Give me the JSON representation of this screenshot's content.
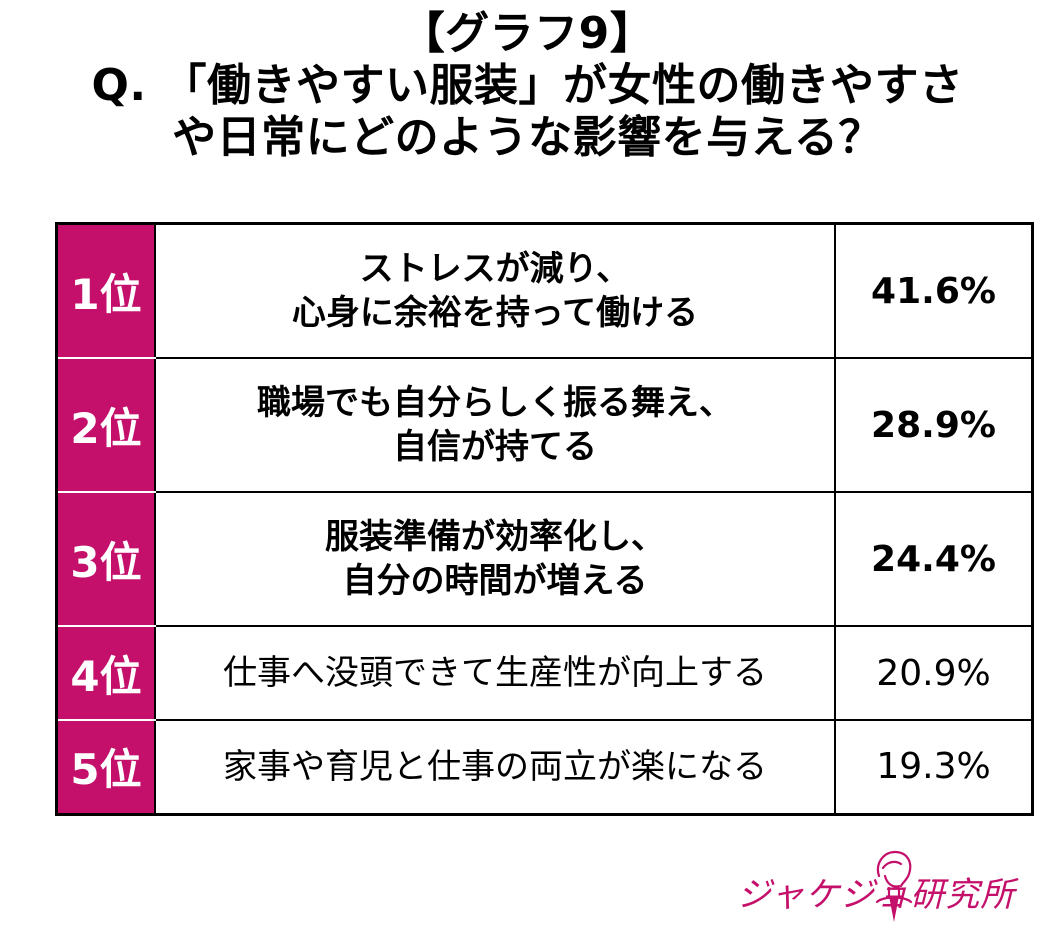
{
  "title": {
    "line1": "【グラフ9】",
    "line2": "Q. 「働きやすい服装」が女性の働きやすさ",
    "line3": "や日常にどのような影響を与える？"
  },
  "colors": {
    "accent": "#c4106b",
    "border": "#000000"
  },
  "chart_data": {
    "type": "table",
    "columns": [
      "rank",
      "answer",
      "percent"
    ],
    "rows": [
      {
        "rank": "1位",
        "answer_lines": [
          "ストレスが減り、",
          "心身に余裕を持って働ける"
        ],
        "percent": "41.6%",
        "value": 41.6,
        "emphasis": true
      },
      {
        "rank": "2位",
        "answer_lines": [
          "職場でも自分らしく振る舞え、",
          "自信が持てる"
        ],
        "percent": "28.9%",
        "value": 28.9,
        "emphasis": true
      },
      {
        "rank": "3位",
        "answer_lines": [
          "服装準備が効率化し、",
          "自分の時間が増える"
        ],
        "percent": "24.4%",
        "value": 24.4,
        "emphasis": true
      },
      {
        "rank": "4位",
        "answer_lines": [
          "仕事へ没頭できて生産性が向上する"
        ],
        "percent": "20.9%",
        "value": 20.9,
        "emphasis": false
      },
      {
        "rank": "5位",
        "answer_lines": [
          "家事や育児と仕事の両立が楽になる"
        ],
        "percent": "19.3%",
        "value": 19.3,
        "emphasis": false
      }
    ]
  },
  "logo": {
    "text": "ジャケジョ研究所",
    "icon": "woman-profile-icon"
  }
}
